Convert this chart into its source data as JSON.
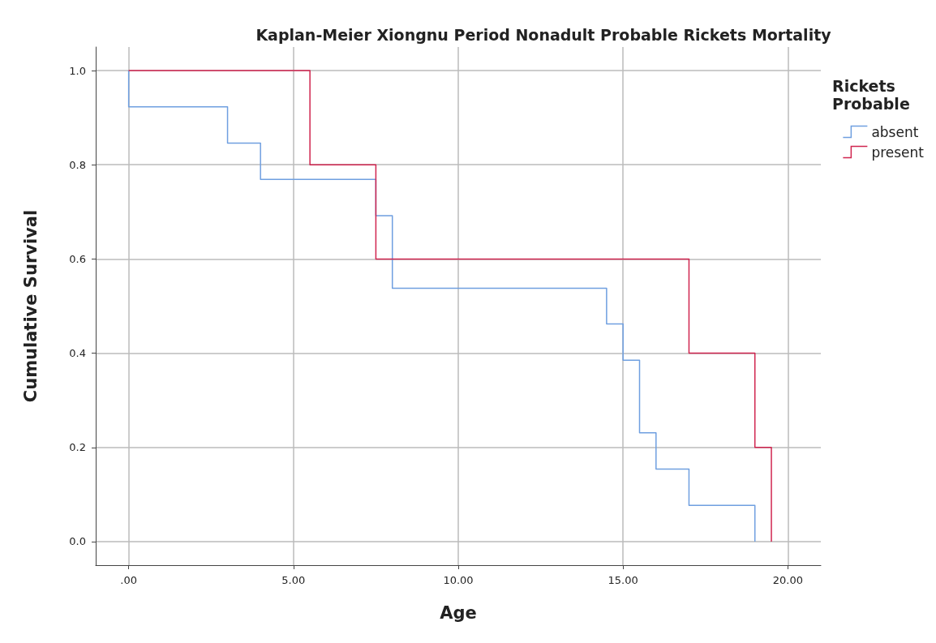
{
  "chart_data": {
    "type": "step",
    "title": "Kaplan-Meier Xiongnu Period Nonadult Probable Rickets Mortality",
    "xlabel": "Age",
    "ylabel": "Cumulative Survival",
    "legend_title": "Rickets Probable",
    "series": [
      {
        "name": "absent",
        "color": "#6f9fe0",
        "x": [
          0,
          0,
          3,
          4,
          7.5,
          8,
          14.5,
          15,
          15.5,
          16,
          17,
          19
        ],
        "values": [
          1,
          0.923,
          0.846,
          0.769,
          0.692,
          0.538,
          0.462,
          0.385,
          0.231,
          0.154,
          0.077,
          0
        ]
      },
      {
        "name": "present",
        "color": "#d0254f",
        "x": [
          0,
          5.5,
          7.5,
          17,
          19,
          19.5
        ],
        "values": [
          1,
          0.8,
          0.6,
          0.4,
          0.2,
          0
        ]
      }
    ],
    "xlim": [
      -1,
      21
    ],
    "xticks": [
      {
        "value": 0,
        "label": ".00"
      },
      {
        "value": 5,
        "label": "5.00"
      },
      {
        "value": 10,
        "label": "10.00"
      },
      {
        "value": 15,
        "label": "15.00"
      },
      {
        "value": 20,
        "label": "20.00"
      }
    ],
    "ylim": [
      -0.05,
      1.05
    ],
    "yticks": [
      {
        "value": 0,
        "label": "0.0"
      },
      {
        "value": 0.2,
        "label": "0.2"
      },
      {
        "value": 0.4,
        "label": "0.4"
      },
      {
        "value": 0.6,
        "label": "0.6"
      },
      {
        "value": 0.8,
        "label": "0.8"
      },
      {
        "value": 1,
        "label": "1.0"
      }
    ],
    "grid": true,
    "legend": "top right",
    "marker": "none",
    "line_style": "solid"
  }
}
